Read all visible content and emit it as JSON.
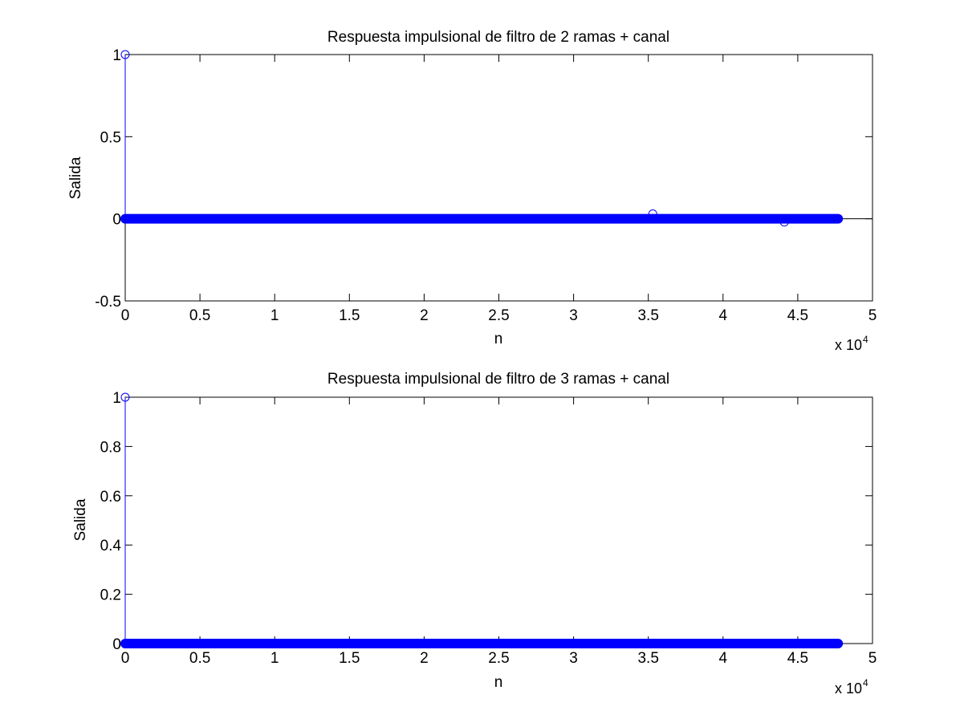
{
  "chart_data": [
    {
      "type": "stem",
      "title": "Respuesta impulsional de filtro de 2 ramas + canal",
      "xlabel": "n",
      "ylabel": "Salida",
      "xlim": [
        0,
        50000
      ],
      "ylim": [
        -0.5,
        1
      ],
      "x_ticks": [
        0,
        0.5,
        1,
        1.5,
        2,
        2.5,
        3,
        3.5,
        4,
        4.5,
        5
      ],
      "x_tick_labels": [
        "0",
        "0.5",
        "1",
        "1.5",
        "2",
        "2.5",
        "3",
        "3.5",
        "4",
        "4.5",
        "5"
      ],
      "x_tick_scale": 10000,
      "x_multiplier_base": "x 10",
      "x_multiplier_exp": "4",
      "y_ticks": [
        -0.5,
        0,
        0.5,
        1
      ],
      "y_tick_labels": [
        "-0.5",
        "0",
        "0.5",
        "1"
      ],
      "dense_zero_range": [
        0,
        47700
      ],
      "points": [
        {
          "x": 0,
          "y": 1
        },
        {
          "x": 35300,
          "y": 0.03
        },
        {
          "x": 44100,
          "y": -0.02
        }
      ],
      "marker_color": "#0000ff",
      "grid": false
    },
    {
      "type": "stem",
      "title": "Respuesta impulsional de filtro de 3 ramas + canal",
      "xlabel": "n",
      "ylabel": "Salida",
      "xlim": [
        0,
        50000
      ],
      "ylim": [
        0,
        1
      ],
      "x_ticks": [
        0,
        0.5,
        1,
        1.5,
        2,
        2.5,
        3,
        3.5,
        4,
        4.5,
        5
      ],
      "x_tick_labels": [
        "0",
        "0.5",
        "1",
        "1.5",
        "2",
        "2.5",
        "3",
        "3.5",
        "4",
        "4.5",
        "5"
      ],
      "x_tick_scale": 10000,
      "x_multiplier_base": "x 10",
      "x_multiplier_exp": "4",
      "y_ticks": [
        0,
        0.2,
        0.4,
        0.6,
        0.8,
        1
      ],
      "y_tick_labels": [
        "0",
        "0.2",
        "0.4",
        "0.6",
        "0.8",
        "1"
      ],
      "dense_zero_range": [
        0,
        47700
      ],
      "points": [
        {
          "x": 0,
          "y": 1
        }
      ],
      "marker_color": "#0000ff",
      "grid": false
    }
  ]
}
